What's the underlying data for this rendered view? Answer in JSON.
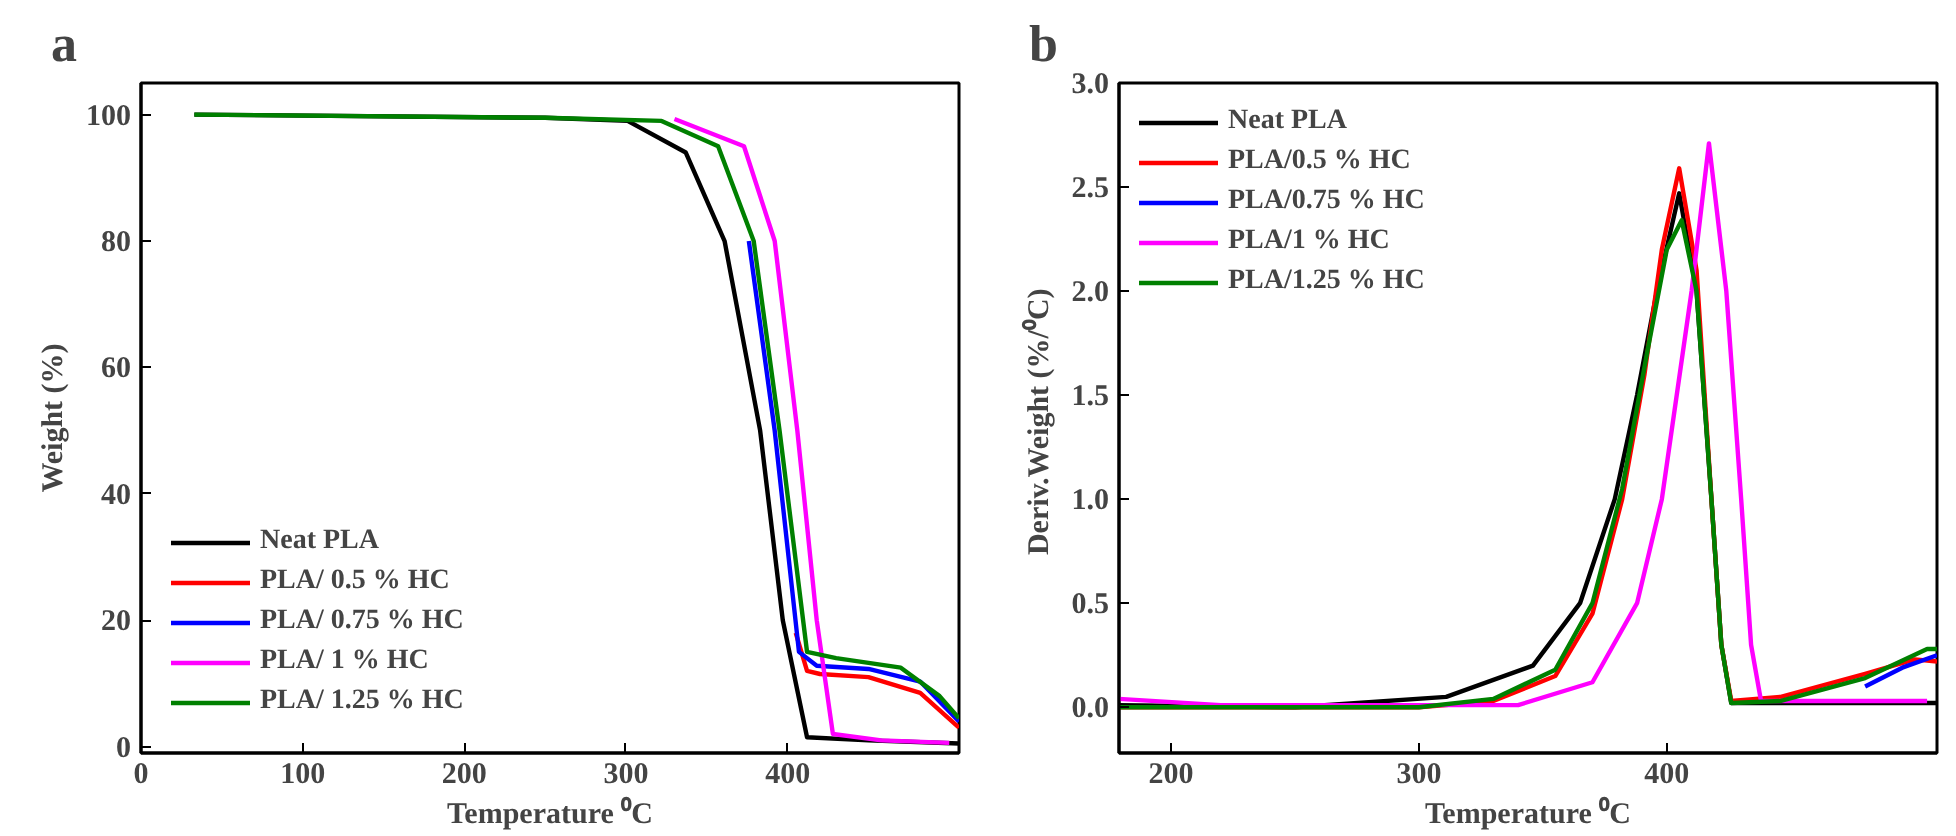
{
  "chart_data": [
    {
      "type": "line",
      "title": "a",
      "xlabel": "Temperature ⁰C",
      "ylabel": "Weight (%)",
      "xlim": [
        0,
        506
      ],
      "ylim": [
        -1,
        105
      ],
      "xticks": [
        0,
        100,
        200,
        300,
        400
      ],
      "yticks": [
        0,
        20,
        40,
        60,
        80,
        100
      ],
      "grid": false,
      "legend": "bottom left",
      "marker": "none",
      "line_style": "solid",
      "series": [
        {
          "name": "Neat PLA",
          "color": "#000000",
          "x": [
            33,
            250,
            301,
            337,
            361,
            383,
            397,
            412,
            450,
            506
          ],
          "values": [
            100,
            99.5,
            99,
            94,
            80,
            50,
            20,
            1.5,
            1,
            0.5
          ]
        },
        {
          "name": "PLA/ 0.5 % HC",
          "color": "#ff0000",
          "x": [
            405,
            412,
            420,
            450,
            482,
            506
          ],
          "values": [
            18,
            12,
            11.5,
            11,
            8.5,
            3
          ]
        },
        {
          "name": "PLA/ 0.75 % HC",
          "color": "#0000ff",
          "x": [
            376,
            392,
            407,
            418,
            450,
            482,
            506
          ],
          "values": [
            80,
            50,
            15,
            12.8,
            12.3,
            10.3,
            4
          ]
        },
        {
          "name": "PLA/ 1 % HC",
          "color": "#ff00ff",
          "x": [
            330,
            373,
            392,
            406,
            418,
            428,
            458,
            500
          ],
          "values": [
            99.3,
            95,
            80,
            50,
            20,
            2,
            1,
            0.6
          ]
        },
        {
          "name": "PLA/ 1.25 % HC",
          "color": "#008000",
          "x": [
            33,
            250,
            322,
            357,
            379,
            395,
            412,
            430,
            470,
            494,
            506
          ],
          "values": [
            100,
            99.5,
            99,
            95,
            80,
            50,
            15,
            14,
            12.5,
            8,
            4.5
          ]
        }
      ]
    },
    {
      "type": "line",
      "title": "b",
      "xlabel": "Temperature ⁰C",
      "ylabel": "Deriv.Weight  (%/⁰C)",
      "xlim": [
        179,
        509
      ],
      "ylim": [
        -0.22,
        3.0
      ],
      "xticks": [
        200,
        300,
        400
      ],
      "yticks": [
        {
          "value": 0,
          "label": "0.0"
        },
        0.5,
        {
          "value": 1,
          "label": "1.0"
        },
        1.5,
        {
          "value": 2,
          "label": "2.0"
        },
        2.5,
        {
          "value": 3,
          "label": "3.0"
        }
      ],
      "grid": false,
      "legend": "top left",
      "marker": "none",
      "line_style": "solid",
      "series": [
        {
          "name": "Neat PLA",
          "color": "#000000",
          "x": [
            179,
            250,
            311,
            346,
            365,
            379,
            388,
            396,
            405,
            412,
            418,
            422,
            426,
            450,
            509
          ],
          "values": [
            0.01,
            0.0,
            0.05,
            0.2,
            0.5,
            1.0,
            1.5,
            2.0,
            2.47,
            2.0,
            1.0,
            0.3,
            0.02,
            0.02,
            0.02
          ]
        },
        {
          "name": "PLA/0.5 % HC",
          "color": "#ff0000",
          "x": [
            179,
            300,
            330,
            355,
            370,
            382,
            391,
            398,
            405,
            412,
            418,
            422,
            426,
            446,
            480,
            500,
            509
          ],
          "values": [
            0.0,
            0.0,
            0.03,
            0.15,
            0.45,
            1.0,
            1.6,
            2.2,
            2.59,
            2.1,
            1.0,
            0.3,
            0.03,
            0.05,
            0.16,
            0.23,
            0.22
          ]
        },
        {
          "name": "PLA/0.75 % HC",
          "color": "#0000ff",
          "x": [
            480,
            495,
            509
          ],
          "values": [
            0.1,
            0.19,
            0.25
          ]
        },
        {
          "name": "PLA/1 % HC",
          "color": "#ff00ff",
          "x": [
            179,
            220,
            340,
            370,
            388,
            398,
            404,
            410,
            417,
            424,
            430,
            434,
            438,
            505
          ],
          "values": [
            0.04,
            0.01,
            0.01,
            0.12,
            0.5,
            1.0,
            1.5,
            2.0,
            2.71,
            2.0,
            1.0,
            0.3,
            0.03,
            0.03
          ]
        },
        {
          "name": "PLA/1.25 % HC",
          "color": "#008000",
          "x": [
            179,
            300,
            330,
            355,
            370,
            382,
            392,
            400,
            406,
            412,
            418,
            422,
            426,
            446,
            480,
            505,
            509
          ],
          "values": [
            0.0,
            0.0,
            0.04,
            0.18,
            0.5,
            1.05,
            1.7,
            2.2,
            2.34,
            2.0,
            1.0,
            0.3,
            0.02,
            0.03,
            0.14,
            0.28,
            0.28
          ]
        }
      ]
    }
  ]
}
